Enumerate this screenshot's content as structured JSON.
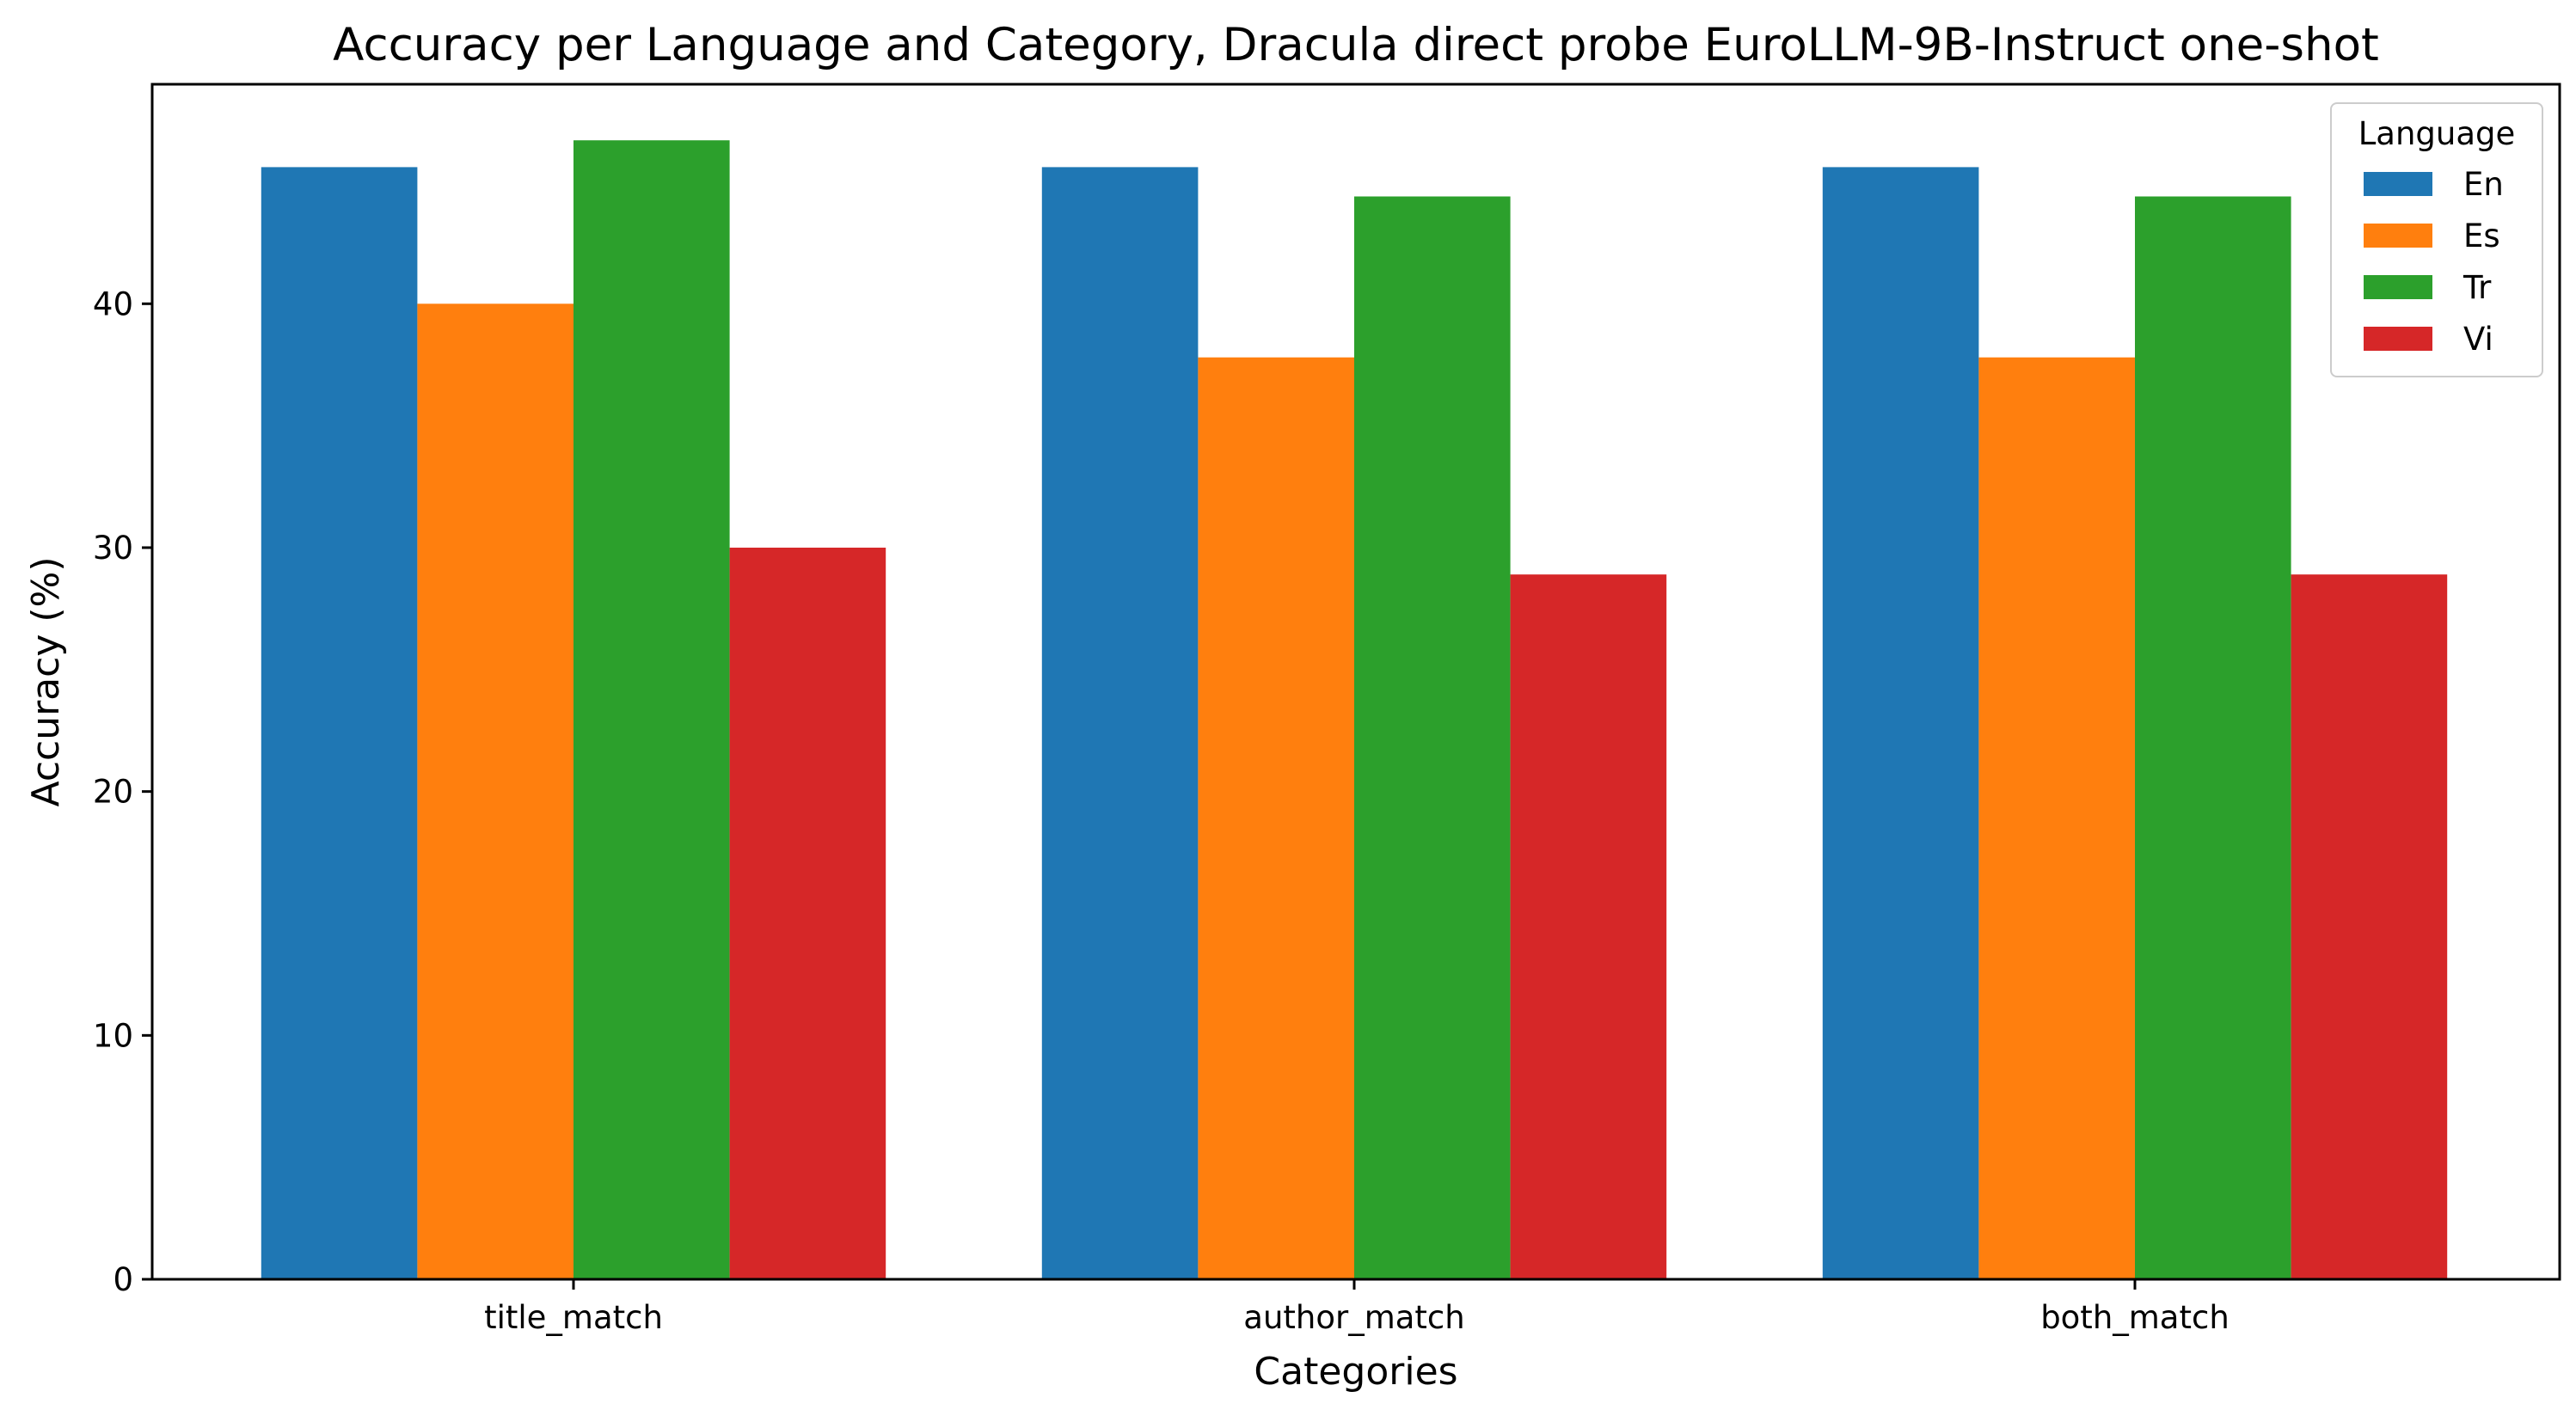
{
  "chart_data": {
    "type": "bar",
    "title": "Accuracy per Language and Category, Dracula direct probe EuroLLM-9B-Instruct one-shot",
    "xlabel": "Categories",
    "ylabel": "Accuracy (%)",
    "categories": [
      "title_match",
      "author_match",
      "both_match"
    ],
    "series": [
      {
        "name": "En",
        "color": "#1f77b4",
        "values": [
          45.6,
          45.6,
          45.6
        ]
      },
      {
        "name": "Es",
        "color": "#ff7f0e",
        "values": [
          40.0,
          37.8,
          37.8
        ]
      },
      {
        "name": "Tr",
        "color": "#2ca02c",
        "values": [
          46.7,
          44.4,
          44.4
        ]
      },
      {
        "name": "Vi",
        "color": "#d62728",
        "values": [
          30.0,
          28.9,
          28.9
        ]
      }
    ],
    "ylim": [
      0,
      49
    ],
    "yticks": [
      0,
      10,
      20,
      30,
      40
    ],
    "grid": false,
    "legend": {
      "title": "Language",
      "placement": "top-right"
    }
  }
}
